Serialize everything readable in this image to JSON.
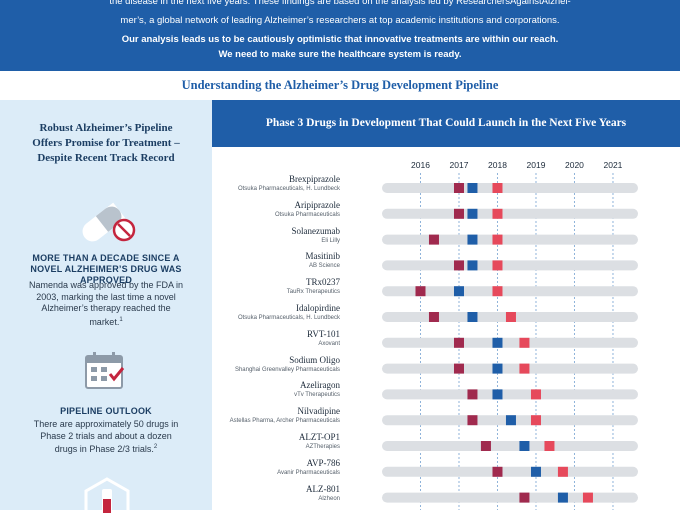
{
  "banner": {
    "line1": "the disease in the next five years. These findings are based on the analysis led by ResearchersAgainstAlzhei-",
    "line2": "mer’s, a global network of leading Alzheimer’s researchers at top academic institutions and corporations.",
    "line3": "Our analysis leads us to be cautiously optimistic that innovative treatments are within our reach.",
    "line4": "We need to make sure the healthcare system is ready."
  },
  "subheading": "Understanding the Alzheimer’s Drug Development Pipeline",
  "sidebar": {
    "title": "Robust Alzheimer’s Pipeline Offers Promise for Treatment – Despite Recent Track Record",
    "section1": {
      "heading": "MORE THAN A DECADE SINCE A NOVEL ALZHEIMER’S DRUG WAS APPROVED",
      "text": "Namenda was approved by the FDA in 2003, marking the last time a novel Alzheimer’s therapy reached the market.",
      "footnote": "1"
    },
    "section2": {
      "heading": "PIPELINE OUTLOOK",
      "text": "There are approximately 50 drugs in Phase 2 trials and about a dozen drugs in Phase 2/3 trials.",
      "footnote": "2"
    },
    "colors": {
      "icon_blue": "#1f5ea8",
      "icon_red": "#c4253e",
      "icon_gray": "#8d9aa8"
    }
  },
  "chart_data": {
    "type": "timeline",
    "title": "Phase 3 Drugs in Development That Could Launch in the Next Five Years",
    "x_ticks": [
      "2016",
      "2017",
      "2018",
      "2019",
      "2020",
      "2021"
    ],
    "x_range": [
      2015.0,
      2021.65
    ],
    "milestone_colors": {
      "a": "#a02a4e",
      "b": "#1f5ea8",
      "c": "#e6495b"
    },
    "drugs": [
      {
        "name": "Brexpiprazole",
        "company": "Otsuka Pharmaceuticals, H. Lundbeck",
        "a": 2017.0,
        "b": 2017.35,
        "c": 2018.0
      },
      {
        "name": "Aripiprazole",
        "company": "Otsuka Pharmaceuticals",
        "a": 2017.0,
        "b": 2017.35,
        "c": 2018.0
      },
      {
        "name": "Solanezumab",
        "company": "Eli Lilly",
        "a": 2016.35,
        "b": 2017.35,
        "c": 2018.0
      },
      {
        "name": "Masitinib",
        "company": "AB Science",
        "a": 2017.0,
        "b": 2017.35,
        "c": 2018.0
      },
      {
        "name": "TRx0237",
        "company": "TauRx Therapeutics",
        "a": 2016.0,
        "b": 2017.0,
        "c": 2018.0
      },
      {
        "name": "Idalopirdine",
        "company": "Otsuka Pharmaceuticals, H. Lundbeck",
        "a": 2016.35,
        "b": 2017.35,
        "c": 2018.35
      },
      {
        "name": "RVT-101",
        "company": "Axovant",
        "a": 2017.0,
        "b": 2018.0,
        "c": 2018.7
      },
      {
        "name": "Sodium Oligo",
        "company": "Shanghai Greenvalley Pharmaceuticals",
        "a": 2017.0,
        "b": 2018.0,
        "c": 2018.7
      },
      {
        "name": "Azeliragon",
        "company": "vTv Therapeutics",
        "a": 2017.35,
        "b": 2018.0,
        "c": 2019.0
      },
      {
        "name": "Nilvadipine",
        "company": "Astellas Pharma, Archer Pharmaceuticals",
        "a": 2017.35,
        "b": 2018.35,
        "c": 2019.0
      },
      {
        "name": "ALZT-OP1",
        "company": "AZTherapies",
        "a": 2017.7,
        "b": 2018.7,
        "c": 2019.35
      },
      {
        "name": "AVP-786",
        "company": "Avanir Pharmaceuticals",
        "a": 2018.0,
        "b": 2019.0,
        "c": 2019.7
      },
      {
        "name": "ALZ-801",
        "company": "Alzheon",
        "a": 2018.7,
        "b": 2019.7,
        "c": 2020.35
      }
    ]
  }
}
